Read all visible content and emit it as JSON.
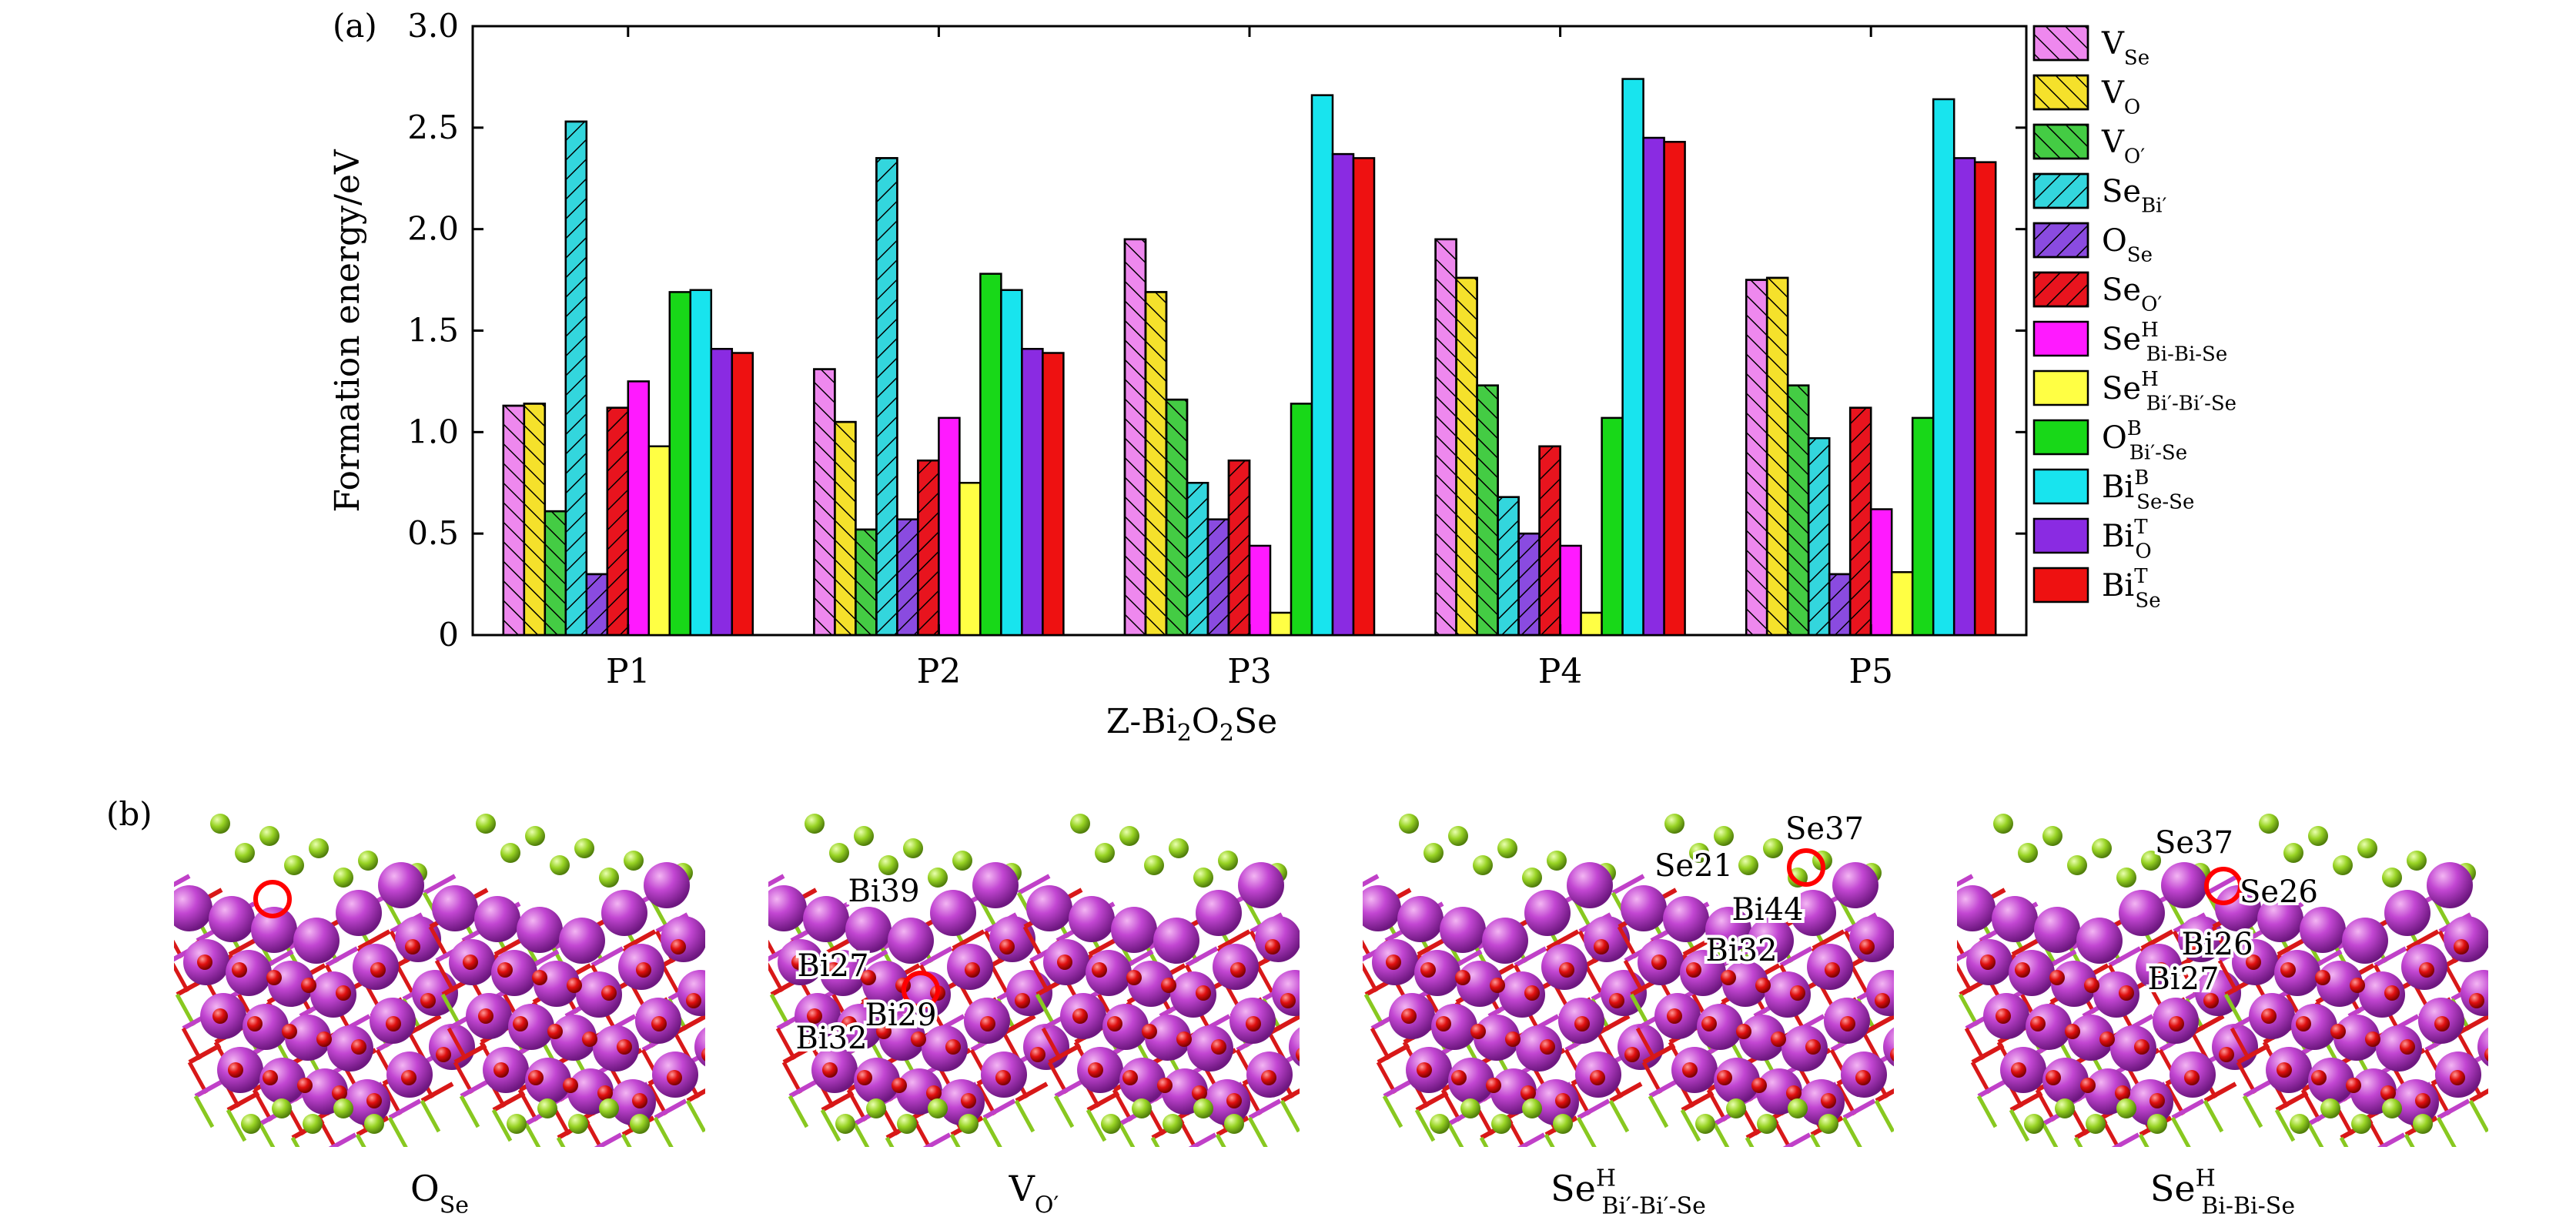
{
  "panel_a": {
    "label": "(a)",
    "xlabel": "Z-Bi₂O₂Se",
    "ylabel": "Formation energy/eV"
  },
  "panel_b": {
    "label": "(b)",
    "structures": [
      {
        "caption_base": "O",
        "caption_sub": "Se",
        "caption_sup": "",
        "atom_labels": []
      },
      {
        "caption_base": "V",
        "caption_sub": "O′",
        "caption_sup": "",
        "atom_labels": [
          "Bi39",
          "Bi27",
          "Bi29",
          "Bi32"
        ]
      },
      {
        "caption_base": "Se",
        "caption_sub": "Bi′-Bi′-Se",
        "caption_sup": "H",
        "atom_labels": [
          "Se37",
          "Se21",
          "Bi44",
          "Bi32"
        ]
      },
      {
        "caption_base": "Se",
        "caption_sub": "Bi-Bi-Se",
        "caption_sup": "H",
        "atom_labels": [
          "Se37",
          "Se26",
          "Bi26",
          "Bi27"
        ]
      }
    ]
  },
  "chart_data": {
    "type": "bar",
    "categories": [
      "P1",
      "P2",
      "P3",
      "P4",
      "P5"
    ],
    "xlabel": "Z-Bi₂O₂Se",
    "ylabel": "Formation energy/eV",
    "ylim": [
      0,
      3.0
    ],
    "yticks": [
      "0",
      "0.5",
      "1.0",
      "1.5",
      "2.0",
      "2.5",
      "3.0"
    ],
    "legend_position": "right",
    "series": [
      {
        "base": "V",
        "sub": "Se",
        "sup": "",
        "color": "#ee88ee",
        "hatch": true,
        "hatch_dir": "up",
        "values": [
          1.13,
          1.31,
          1.95,
          1.95,
          1.75
        ]
      },
      {
        "base": "V",
        "sub": "O",
        "sup": "",
        "color": "#f5e12b",
        "hatch": true,
        "hatch_dir": "up",
        "values": [
          1.14,
          1.05,
          1.69,
          1.76,
          1.76
        ]
      },
      {
        "base": "V",
        "sub": "O′",
        "sup": "",
        "color": "#44cc44",
        "hatch": true,
        "hatch_dir": "up",
        "values": [
          0.61,
          0.52,
          1.16,
          1.23,
          1.23
        ]
      },
      {
        "base": "Se",
        "sub": "Bi′",
        "sup": "",
        "color": "#33d6dd",
        "hatch": true,
        "hatch_dir": "down",
        "values": [
          2.53,
          2.35,
          0.75,
          0.68,
          0.97
        ]
      },
      {
        "base": "O",
        "sub": "Se",
        "sup": "",
        "color": "#8a4be0",
        "hatch": true,
        "hatch_dir": "down",
        "values": [
          0.3,
          0.57,
          0.57,
          0.5,
          0.3
        ]
      },
      {
        "base": "Se",
        "sub": "O′",
        "sup": "",
        "color": "#e8141e",
        "hatch": true,
        "hatch_dir": "down",
        "values": [
          1.12,
          0.86,
          0.86,
          0.93,
          1.12
        ]
      },
      {
        "base": "Se",
        "sub": "Bi-Bi-Se",
        "sup": "H",
        "color": "#ff1aff",
        "hatch": false,
        "hatch_dir": "",
        "values": [
          1.25,
          1.07,
          0.44,
          0.44,
          0.62
        ]
      },
      {
        "base": "Se",
        "sub": "Bi′-Bi′-Se",
        "sup": "H",
        "color": "#ffff44",
        "hatch": false,
        "hatch_dir": "",
        "values": [
          0.93,
          0.75,
          0.11,
          0.11,
          0.31
        ]
      },
      {
        "base": "O",
        "sub": "Bi′-Se",
        "sup": "B",
        "color": "#18d818",
        "hatch": false,
        "hatch_dir": "",
        "values": [
          1.69,
          1.78,
          1.14,
          1.07,
          1.07
        ]
      },
      {
        "base": "Bi",
        "sub": "Se-Se",
        "sup": "B",
        "color": "#18e4ee",
        "hatch": false,
        "hatch_dir": "",
        "values": [
          1.7,
          1.7,
          2.66,
          2.74,
          2.64
        ]
      },
      {
        "base": "Bi",
        "sub": "O",
        "sup": "T",
        "color": "#8a2be2",
        "hatch": false,
        "hatch_dir": "",
        "values": [
          1.41,
          1.41,
          2.37,
          2.45,
          2.35
        ]
      },
      {
        "base": "Bi",
        "sub": "Se",
        "sup": "T",
        "color": "#ee1111",
        "hatch": false,
        "hatch_dir": "",
        "values": [
          1.39,
          1.39,
          2.35,
          2.43,
          2.33
        ]
      }
    ]
  }
}
